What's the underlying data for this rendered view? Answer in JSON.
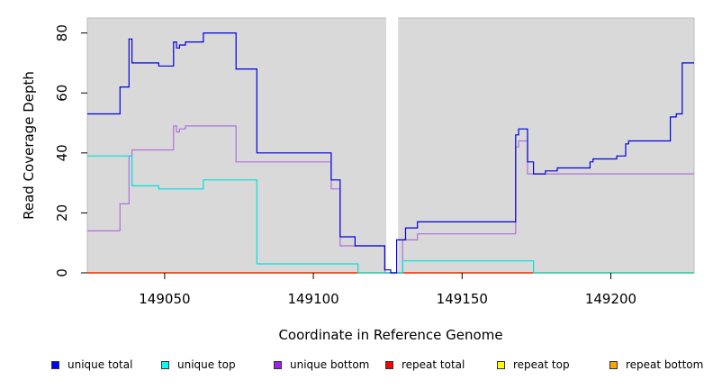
{
  "chart_data": {
    "type": "line",
    "xlabel": "Coordinate in Reference Genome",
    "ylabel": "Read Coverage Depth",
    "xlim": [
      149024,
      149228
    ],
    "ylim": [
      0,
      85
    ],
    "x_ticks": [
      149050,
      149100,
      149150,
      149200
    ],
    "y_ticks": [
      0,
      20,
      40,
      60,
      80
    ],
    "gaps": [
      [
        149124.5,
        149128.5
      ]
    ],
    "plot_background": "#d9d9d9",
    "legend_placement": "bottom",
    "series": [
      {
        "name": "unique total",
        "color": "#0000dd",
        "legend_color": "#0000ff",
        "points": [
          [
            149024,
            53
          ],
          [
            149035,
            62
          ],
          [
            149038,
            78
          ],
          [
            149039,
            70
          ],
          [
            149048,
            69
          ],
          [
            149053,
            77
          ],
          [
            149054,
            75
          ],
          [
            149055,
            76
          ],
          [
            149057,
            77
          ],
          [
            149063,
            80
          ],
          [
            149074,
            68
          ],
          [
            149081,
            40
          ],
          [
            149106,
            31
          ],
          [
            149109,
            12
          ],
          [
            149114,
            9
          ],
          [
            149124,
            1
          ],
          [
            149126,
            0
          ],
          [
            149128,
            11
          ],
          [
            149131,
            15
          ],
          [
            149135,
            17
          ],
          [
            149168,
            46
          ],
          [
            149169,
            48
          ],
          [
            149172,
            37
          ],
          [
            149174,
            33
          ],
          [
            149178,
            34
          ],
          [
            149182,
            35
          ],
          [
            149193,
            37
          ],
          [
            149194,
            38
          ],
          [
            149202,
            39
          ],
          [
            149205,
            43
          ],
          [
            149206,
            44
          ],
          [
            149220,
            52
          ],
          [
            149222,
            53
          ],
          [
            149224,
            70
          ],
          [
            149228,
            70
          ]
        ]
      },
      {
        "name": "unique top",
        "color": "#00e0e0",
        "legend_color": "#00ffff",
        "points": [
          [
            149024,
            39
          ],
          [
            149039,
            29
          ],
          [
            149048,
            28
          ],
          [
            149063,
            31
          ],
          [
            149081,
            3
          ],
          [
            149115,
            0
          ],
          [
            149128,
            0
          ],
          [
            149130,
            4
          ],
          [
            149174,
            0
          ],
          [
            149228,
            0
          ]
        ]
      },
      {
        "name": "unique bottom",
        "color": "#b070e0",
        "legend_color": "#a020f0",
        "points": [
          [
            149024,
            14
          ],
          [
            149035,
            23
          ],
          [
            149038,
            39
          ],
          [
            149039,
            41
          ],
          [
            149053,
            49
          ],
          [
            149054,
            47
          ],
          [
            149055,
            48
          ],
          [
            149057,
            49
          ],
          [
            149074,
            37
          ],
          [
            149106,
            28
          ],
          [
            149109,
            9
          ],
          [
            149114,
            9
          ],
          [
            149124,
            0
          ],
          [
            149128,
            0
          ],
          [
            149130,
            11
          ],
          [
            149135,
            13
          ],
          [
            149168,
            42
          ],
          [
            149169,
            44
          ],
          [
            149172,
            33
          ],
          [
            149174,
            33
          ],
          [
            149228,
            33
          ]
        ]
      },
      {
        "name": "repeat total",
        "color": "#ff0000",
        "legend_color": "#ff0000",
        "points": [
          [
            149024,
            0
          ],
          [
            149228,
            0
          ]
        ]
      },
      {
        "name": "repeat top",
        "color": "#ffff00",
        "legend_color": "#ffff00",
        "points": [
          [
            149024,
            0
          ],
          [
            149228,
            0
          ]
        ]
      },
      {
        "name": "repeat bottom",
        "color": "#ff9900",
        "legend_color": "#ffa500",
        "points": [
          [
            149024,
            0
          ],
          [
            149228,
            0
          ]
        ]
      }
    ]
  }
}
